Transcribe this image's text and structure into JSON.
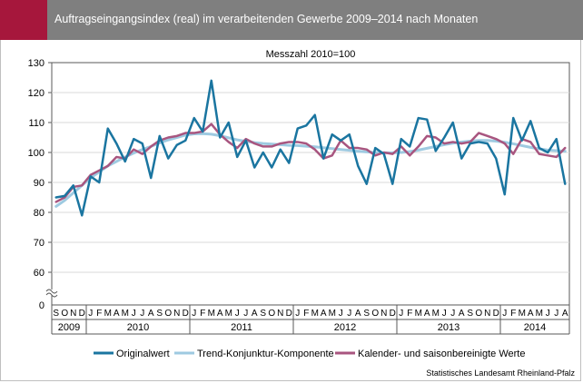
{
  "page": {
    "title": "Auftragseingangsindex (real) im verarbeitenden Gewerbe 2009–2014 nach Monaten",
    "source": "Statistisches Landesamt Rheinland-Pfalz",
    "accent_color": "#a6173c",
    "header_color": "#7f7f7f"
  },
  "chart_data": {
    "type": "line",
    "subtitle": "Messzahl 2010=100",
    "y_ticks": [
      0,
      60,
      70,
      80,
      90,
      100,
      110,
      120,
      130
    ],
    "ylim": [
      60,
      130
    ],
    "y_axis_break": true,
    "grid": true,
    "legend_position": "bottom",
    "month_labels": [
      "S",
      "O",
      "N",
      "D",
      "J",
      "F",
      "M",
      "A",
      "M",
      "J",
      "J",
      "A",
      "S",
      "O",
      "N",
      "D",
      "J",
      "F",
      "M",
      "A",
      "M",
      "J",
      "J",
      "A",
      "S",
      "O",
      "N",
      "D",
      "J",
      "F",
      "M",
      "A",
      "M",
      "J",
      "J",
      "A",
      "S",
      "O",
      "N",
      "D",
      "J",
      "F",
      "M",
      "A",
      "M",
      "J",
      "J",
      "A",
      "S",
      "O",
      "N",
      "D",
      "J",
      "F",
      "M",
      "A",
      "M",
      "J",
      "J",
      "A"
    ],
    "years": [
      {
        "label": "2009",
        "months": 4
      },
      {
        "label": "2010",
        "months": 12
      },
      {
        "label": "2011",
        "months": 12
      },
      {
        "label": "2012",
        "months": 12
      },
      {
        "label": "2013",
        "months": 12
      },
      {
        "label": "2014",
        "months": 8
      }
    ],
    "series": [
      {
        "name": "Originalwert",
        "color": "#1a75a0",
        "values": [
          85,
          85.5,
          89,
          79,
          92,
          90,
          108,
          103,
          97,
          104.5,
          103,
          91.5,
          105.5,
          98,
          102.5,
          104,
          111.5,
          107,
          124,
          105,
          110,
          98.5,
          104,
          95,
          100,
          95,
          101,
          96.5,
          108,
          109,
          112.5,
          98,
          106,
          104,
          106,
          95.5,
          89.5,
          101.5,
          99.5,
          89.5,
          104.5,
          102,
          111.5,
          111,
          100.5,
          105,
          110,
          98,
          103,
          103.5,
          103,
          98,
          86,
          111.5,
          104,
          110.5,
          101.5,
          100,
          104.5,
          89.5
        ]
      },
      {
        "name": "Trend-Konjunktur-Komponente",
        "color": "#9ecae1",
        "values": [
          82,
          84,
          86.5,
          89,
          91.5,
          93.5,
          95.5,
          97,
          98.5,
          99.8,
          101,
          102,
          103.2,
          104.2,
          105,
          105.8,
          106.2,
          106.3,
          106.1,
          105.6,
          104.9,
          104.2,
          103.7,
          103.3,
          103,
          102.8,
          102.6,
          102.4,
          102.3,
          102.1,
          101.9,
          101.6,
          101.3,
          101,
          100.7,
          100.4,
          100.2,
          100,
          99.9,
          99.9,
          100,
          100.3,
          100.8,
          101.4,
          102,
          102.6,
          103.1,
          103.5,
          103.8,
          104,
          104,
          103.8,
          103.4,
          102.9,
          102.3,
          101.7,
          101.2,
          100.8,
          100.6,
          100.4
        ]
      },
      {
        "name": "Kalender- und saisonbereinigte Werte",
        "color": "#a8557f",
        "values": [
          83.5,
          85,
          88.5,
          89,
          92.5,
          94,
          95.5,
          98.5,
          98,
          101,
          99.5,
          102,
          104,
          105,
          105.5,
          106.5,
          106.5,
          107,
          109.5,
          106,
          103.5,
          101.5,
          104.5,
          103,
          102,
          102,
          103,
          103.5,
          103.5,
          103,
          101,
          98,
          99,
          104,
          101.5,
          101.5,
          101,
          99,
          100,
          99.5,
          102,
          99,
          102,
          105.5,
          105,
          103,
          103.5,
          103,
          103.5,
          106.5,
          105.5,
          104.5,
          103,
          99.5,
          104.5,
          103.5,
          99.5,
          99,
          98.5,
          101.5
        ]
      }
    ]
  }
}
